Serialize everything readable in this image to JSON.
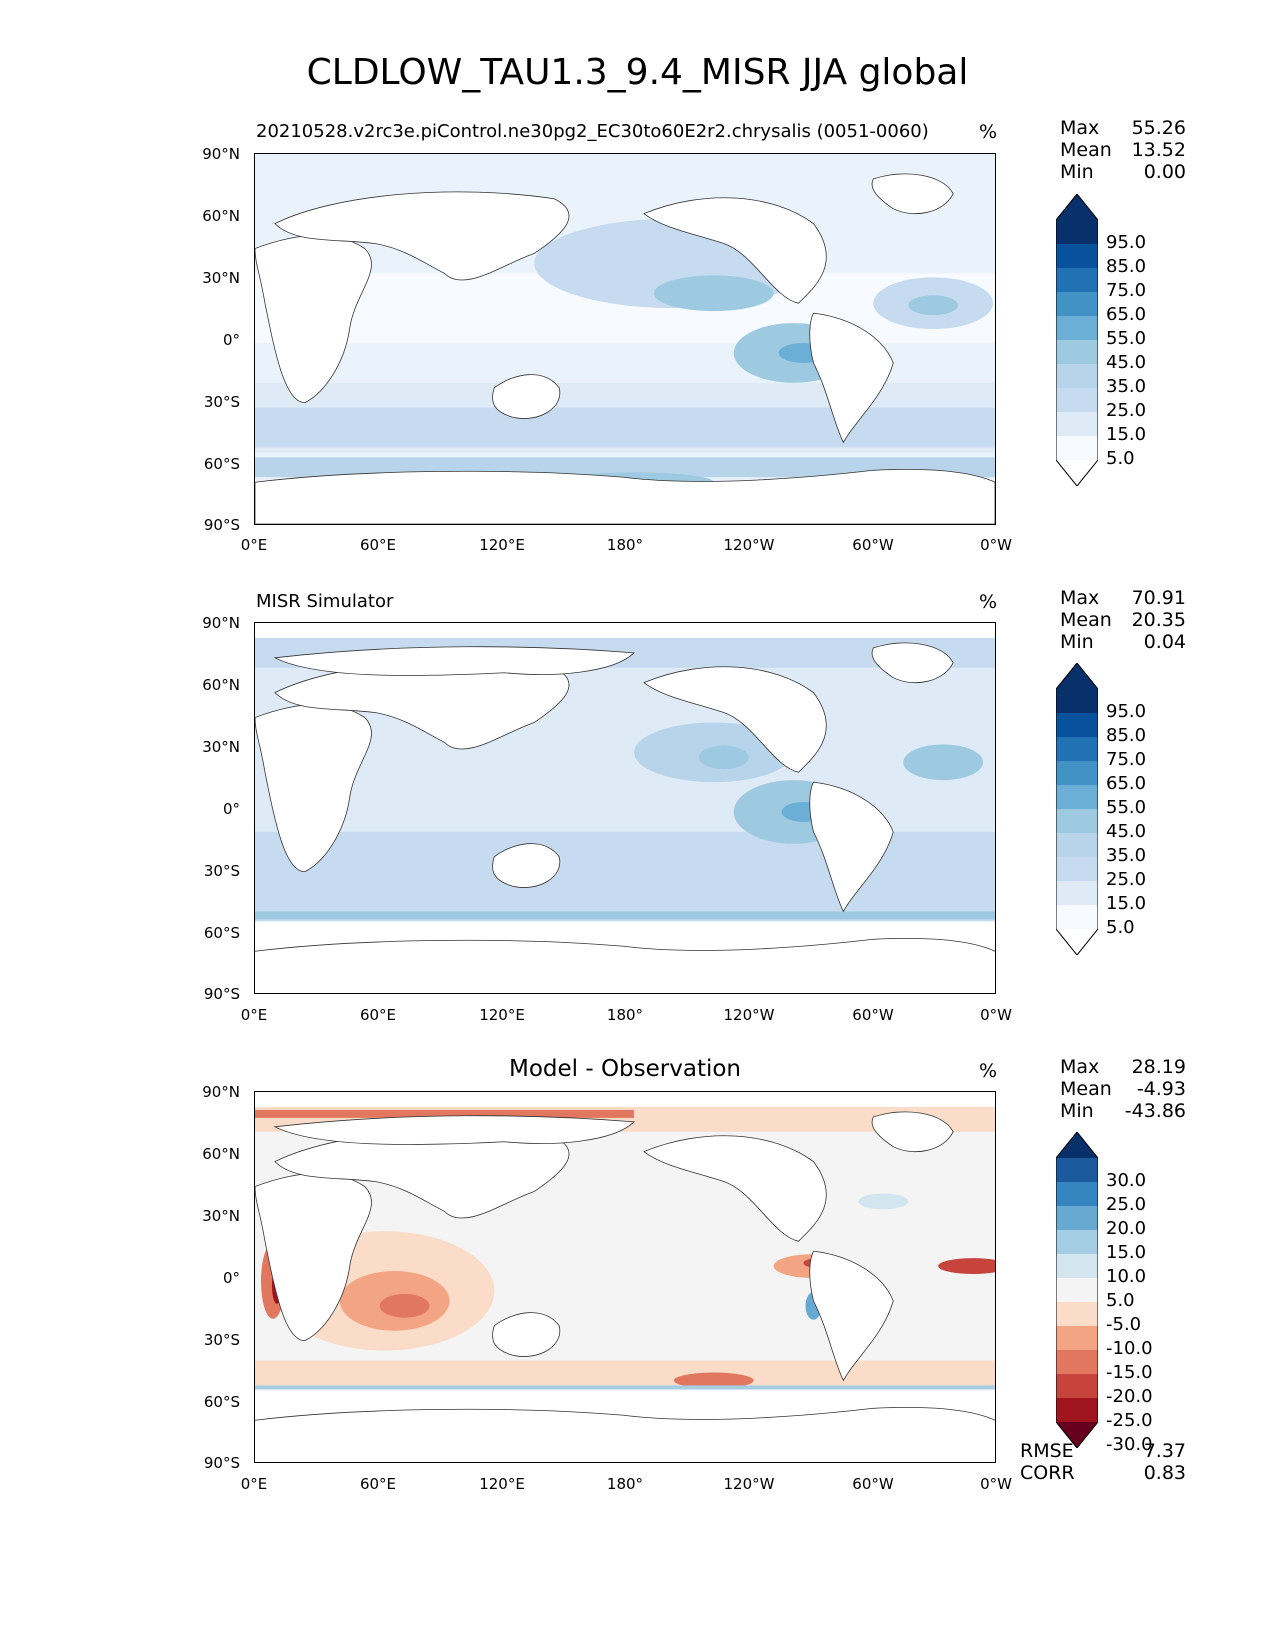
{
  "title": "CLDLOW_TAU1.3_9.4_MISR JJA global",
  "panels": [
    {
      "id": "test",
      "title_left": "20210528.v2rc3e.piControl.ne30pg2_EC30to60E2r2.chrysalis (0051-0060)",
      "title_center": "",
      "units": "%",
      "stats": [
        {
          "label": "Max",
          "value": "55.26"
        },
        {
          "label": "Mean",
          "value": "13.52"
        },
        {
          "label": "Min",
          "value": "0.00"
        }
      ],
      "colorbar_labels": [
        "95.0",
        "85.0",
        "75.0",
        "65.0",
        "55.0",
        "45.0",
        "35.0",
        "25.0",
        "15.0",
        "5.0"
      ],
      "colorbar_colors": [
        "#08306b",
        "#08519c",
        "#2171b5",
        "#4292c6",
        "#6baed6",
        "#9ecae1",
        "#b7d4ea",
        "#c6dbef",
        "#deebf7",
        "#f7fbff"
      ],
      "extend_top": "#08306b",
      "extend_bottom": "#ffffff"
    },
    {
      "id": "reference",
      "title_left": "MISR Simulator",
      "title_center": "",
      "units": "%",
      "stats": [
        {
          "label": "Max",
          "value": "70.91"
        },
        {
          "label": "Mean",
          "value": "20.35"
        },
        {
          "label": "Min",
          "value": "0.04"
        }
      ],
      "colorbar_labels": [
        "95.0",
        "85.0",
        "75.0",
        "65.0",
        "55.0",
        "45.0",
        "35.0",
        "25.0",
        "15.0",
        "5.0"
      ],
      "colorbar_colors": [
        "#08306b",
        "#08519c",
        "#2171b5",
        "#4292c6",
        "#6baed6",
        "#9ecae1",
        "#b7d4ea",
        "#c6dbef",
        "#deebf7",
        "#f7fbff"
      ],
      "extend_top": "#08306b",
      "extend_bottom": "#ffffff"
    },
    {
      "id": "difference",
      "title_left": "",
      "title_center": "Model - Observation",
      "units": "%",
      "stats": [
        {
          "label": "Max",
          "value": "28.19"
        },
        {
          "label": "Mean",
          "value": "-4.93"
        },
        {
          "label": "Min",
          "value": "-43.86"
        }
      ],
      "colorbar_labels": [
        "30.0",
        "25.0",
        "20.0",
        "15.0",
        "10.0",
        "5.0",
        "-5.0",
        "-10.0",
        "-15.0",
        "-20.0",
        "-25.0",
        "-30.0"
      ],
      "colorbar_colors": [
        "#1b5a9c",
        "#3585c0",
        "#68a9d1",
        "#a5cde3",
        "#d3e6f0",
        "#f4f4f4",
        "#fbdcc8",
        "#f3a482",
        "#e0775e",
        "#c6443c",
        "#a0141f"
      ],
      "extend_top": "#08306b",
      "extend_bottom": "#67001f",
      "metrics": [
        {
          "label": "RMSE",
          "value": "7.37"
        },
        {
          "label": "CORR",
          "value": "0.83"
        }
      ]
    }
  ],
  "y_ticks": [
    "90°N",
    "60°N",
    "30°N",
    "0°",
    "30°S",
    "60°S",
    "90°S"
  ],
  "x_ticks": [
    "0°E",
    "60°E",
    "120°E",
    "180°",
    "120°W",
    "60°W",
    "0°W"
  ],
  "chart_data": {
    "type": "heatmap",
    "projection": "PlateCarree",
    "lon_range": [
      0,
      360
    ],
    "lat_range": [
      -90,
      90
    ]
  }
}
